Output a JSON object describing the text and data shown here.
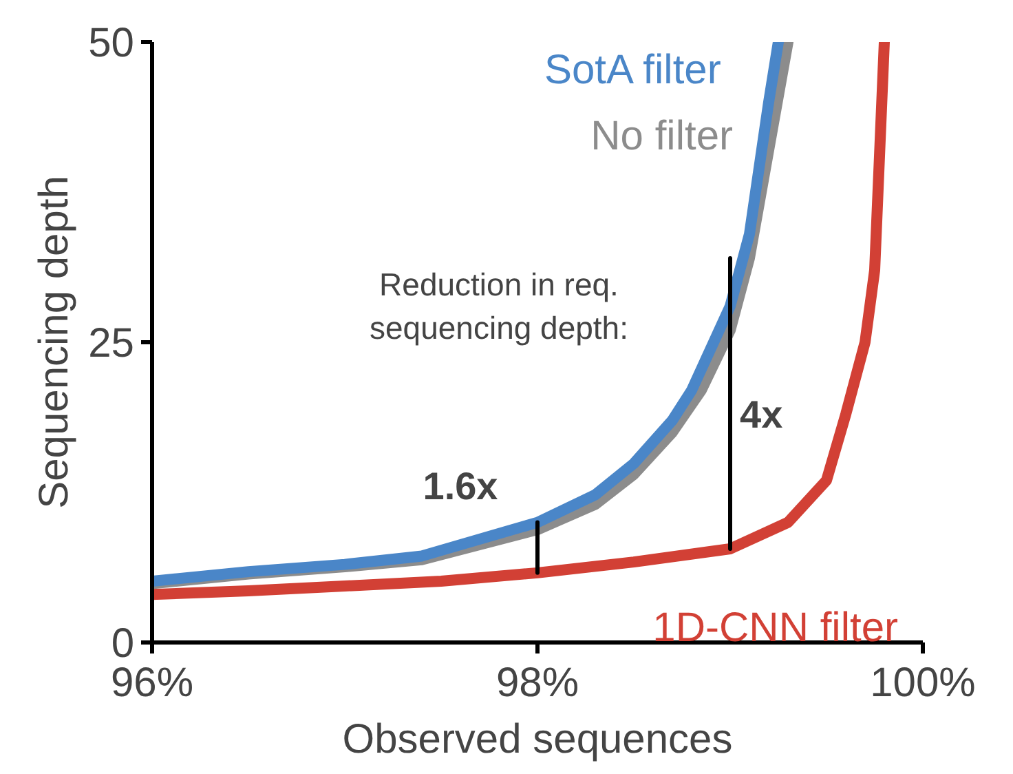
{
  "chart_data": {
    "type": "line",
    "xlabel": "Observed sequences",
    "ylabel": "Sequencing depth",
    "xlim": [
      96,
      100
    ],
    "ylim": [
      0,
      50
    ],
    "xticks": [
      {
        "value": 96,
        "label": "96%"
      },
      {
        "value": 98,
        "label": "98%"
      },
      {
        "value": 100,
        "label": "100%"
      }
    ],
    "yticks": [
      0,
      25,
      50
    ],
    "grid": false,
    "marker": "none",
    "line_style": "solid",
    "series": [
      {
        "name": "No filter",
        "color": "#8c8c8c",
        "x": [
          96,
          96.5,
          97,
          97.4,
          98,
          98.3,
          98.5,
          98.7,
          98.85,
          99,
          99.1,
          99.2,
          99.3
        ],
        "values": [
          4.9,
          5.7,
          6.3,
          6.9,
          9.4,
          11.5,
          14.0,
          17.5,
          21,
          26,
          32,
          41,
          50
        ]
      },
      {
        "name": "SotA filter",
        "color": "#4a86c8",
        "x": [
          96,
          96.5,
          97,
          97.4,
          98,
          98.3,
          98.5,
          98.7,
          98.8,
          99,
          99.1,
          99.2,
          99.25
        ],
        "values": [
          5.1,
          5.9,
          6.5,
          7.2,
          10,
          12.3,
          14.9,
          18.5,
          21,
          28,
          34,
          45,
          50
        ]
      },
      {
        "name": "1D-CNN filter",
        "color": "#d24035",
        "x": [
          96,
          96.5,
          97,
          97.5,
          98,
          98.5,
          99,
          99.3,
          99.5,
          99.6,
          99.7,
          99.75,
          99.8
        ],
        "values": [
          4,
          4.3,
          4.7,
          5.1,
          5.8,
          6.7,
          7.8,
          10,
          13.5,
          19,
          25,
          31,
          50
        ]
      },
      {
        "color": "#000000",
        "x": [
          98,
          98
        ],
        "values": [
          5.8,
          10
        ]
      },
      {
        "color": "#000000",
        "x": [
          99,
          99
        ],
        "values": [
          7.8,
          32
        ]
      }
    ],
    "annotations": [
      "Reduction in req.\nsequencing depth:",
      "1.6x",
      "4x"
    ]
  }
}
